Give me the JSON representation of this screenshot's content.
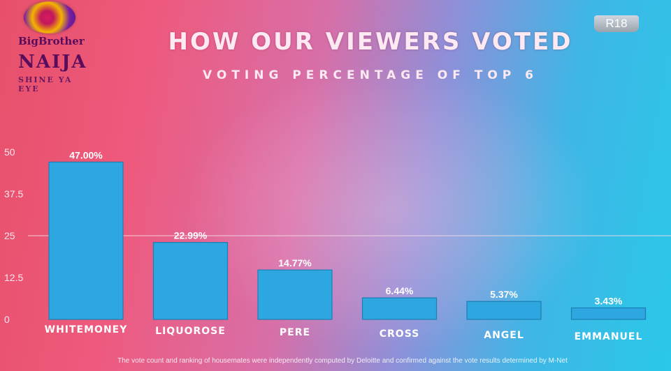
{
  "header": {
    "title": "HOW OUR VIEWERS VOTED",
    "subtitle": "VOTING PERCENTAGE OF TOP 6",
    "rating": "R18"
  },
  "logo": {
    "line1": "BigBrother",
    "line2": "NAIJA",
    "line3": "SHINE YA EYE"
  },
  "footnote": "The vote count and ranking of housemates were independently computed by Deloitte and confirmed against the vote results determined by M-Net",
  "colors": {
    "bar": "#2ea6e0",
    "gridline": "#f3dbe4"
  },
  "chart_data": {
    "type": "bar",
    "title": "HOW OUR VIEWERS VOTED",
    "subtitle": "VOTING PERCENTAGE OF TOP 6",
    "categories": [
      "WHITEMONEY",
      "LIQUOROSE",
      "PERE",
      "CROSS",
      "ANGEL",
      "EMMANUEL"
    ],
    "values": [
      47.0,
      22.99,
      14.77,
      6.44,
      5.37,
      3.43
    ],
    "data_labels": [
      "47.00%",
      "22.99%",
      "14.77%",
      "6.44%",
      "5.37%",
      "3.43%"
    ],
    "yticks": [
      "0",
      "12.5",
      "25",
      "37.5",
      "50"
    ],
    "ylim": [
      0,
      50
    ],
    "xlabel": "",
    "ylabel": "",
    "grid": "single line at 25",
    "legend": "none"
  }
}
